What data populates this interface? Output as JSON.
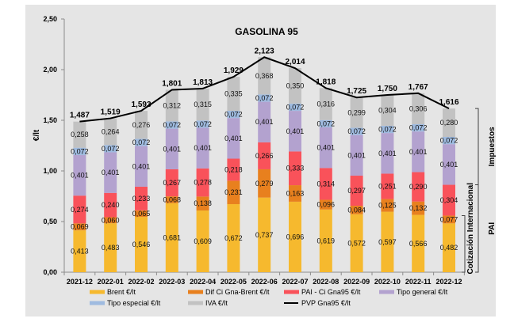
{
  "chart_data": {
    "type": "bar",
    "stacked": true,
    "title": "GASOLINA 95",
    "xlabel": "",
    "ylabel": "€/lt",
    "ylim": [
      0,
      2.5
    ],
    "yticks": [
      "0,00",
      "0,50",
      "1,00",
      "1,50",
      "2,00",
      "2,50"
    ],
    "ytick_values": [
      0,
      0.5,
      1.0,
      1.5,
      2.0,
      2.5
    ],
    "grid": false,
    "legend_position": "bottom",
    "categories": [
      "2021-12",
      "2022-01",
      "2022-02",
      "2022-03",
      "2022-04",
      "2022-05",
      "2022-06",
      "2022-07",
      "2022-08",
      "2022-09",
      "2022-10",
      "2022-11",
      "2022-12"
    ],
    "series": [
      {
        "name": "Brent €/lt",
        "color": "#f6b92e",
        "values": [
          0.413,
          0.483,
          0.546,
          0.681,
          0.609,
          0.672,
          0.737,
          0.696,
          0.619,
          0.572,
          0.597,
          0.566,
          0.482
        ],
        "labels": [
          "0,413",
          "0,483",
          "0,546",
          "0,681",
          "0,609",
          "0,672",
          "0,737",
          "0,696",
          "0,619",
          "0,572",
          "0,597",
          "0,566",
          "0,482"
        ]
      },
      {
        "name": "Dif Ci Gna-Brent €/lt",
        "color": "#e8801e",
        "values": [
          0.069,
          0.06,
          0.065,
          0.068,
          0.138,
          0.231,
          0.279,
          0.163,
          0.096,
          0.084,
          0.125,
          0.132,
          0.077
        ],
        "labels": [
          "0,069",
          "0,060",
          "0,065",
          "0,068",
          "0,138",
          "0,231",
          "0,279",
          "0,163",
          "0,096",
          "0,084",
          "0,125",
          "0,132",
          "0,077"
        ]
      },
      {
        "name": "PAI - Ci Gna95 €/lt",
        "color": "#f9525a",
        "values": [
          0.274,
          0.24,
          0.233,
          0.267,
          0.278,
          0.218,
          0.266,
          0.333,
          0.314,
          0.297,
          0.251,
          0.29,
          0.304
        ],
        "labels": [
          "0,274",
          "0,240",
          "0,233",
          "0,267",
          "0,278",
          "0,218",
          "0,266",
          "0,333",
          "0,314",
          "0,297",
          "0,251",
          "0,290",
          "0,304"
        ]
      },
      {
        "name": "Tipo general €/lt",
        "color": "#b3a2cf",
        "values": [
          0.401,
          0.401,
          0.401,
          0.401,
          0.401,
          0.401,
          0.401,
          0.401,
          0.401,
          0.401,
          0.401,
          0.401,
          0.401
        ],
        "labels": [
          "0,401",
          "0,401",
          "0,401",
          "0,401",
          "0,401",
          "0,401",
          "0,401",
          "0,401",
          "0,401",
          "0,401",
          "0,401",
          "0,401",
          "0,401"
        ]
      },
      {
        "name": "Tipo especial €/lt",
        "color": "#9fbbe0",
        "values": [
          0.072,
          0.072,
          0.072,
          0.072,
          0.072,
          0.072,
          0.072,
          0.072,
          0.072,
          0.072,
          0.072,
          0.072,
          0.072
        ],
        "labels": [
          "0,072",
          "0,072",
          "0,072",
          "0,072",
          "0,072",
          "0,072",
          "0,072",
          "0,072",
          "0,072",
          "0,072",
          "0,072",
          "0,072",
          "0,072"
        ]
      },
      {
        "name": "IVA €/lt",
        "color": "#c2c2c2",
        "values": [
          0.258,
          0.264,
          0.276,
          0.312,
          0.315,
          0.335,
          0.368,
          0.35,
          0.316,
          0.299,
          0.304,
          0.306,
          0.28
        ],
        "labels": [
          "0,258",
          "0,264",
          "0,276",
          "0,312",
          "0,315",
          "0,335",
          "0,368",
          "0,350",
          "0,316",
          "0,299",
          "0,304",
          "0,306",
          "0,280"
        ]
      }
    ],
    "line_series": {
      "name": "PVP Gna95 €/lt",
      "color": "#000000",
      "values": [
        1.487,
        1.519,
        1.593,
        1.801,
        1.813,
        1.929,
        2.123,
        2.014,
        1.818,
        1.725,
        1.75,
        1.767,
        1.616
      ],
      "labels": [
        "1,487",
        "1,519",
        "1,593",
        "1,801",
        "1,813",
        "1,929",
        "2,123",
        "2,014",
        "1,818",
        "1,725",
        "1,750",
        "1,767",
        "1,616"
      ]
    },
    "legend": [
      {
        "name": "Brent €/lt",
        "type": "bar",
        "color": "#f6b92e"
      },
      {
        "name": "Dif Ci Gna-Brent €/lt",
        "type": "bar",
        "color": "#e8801e"
      },
      {
        "name": "PAI - Ci Gna95 €/lt",
        "type": "bar",
        "color": "#f9525a"
      },
      {
        "name": "Tipo general €/lt",
        "type": "bar",
        "color": "#b3a2cf"
      },
      {
        "name": "Tipo especial €/lt",
        "type": "bar",
        "color": "#9fbbe0"
      },
      {
        "name": "IVA €/lt",
        "type": "bar",
        "color": "#c2c2c2"
      },
      {
        "name": "PVP Gna95 €/lt",
        "type": "line",
        "color": "#000000"
      }
    ],
    "annotations": [
      {
        "text": "Impuestos",
        "spans": "Tipo general + Tipo especial + IVA (last bar)"
      },
      {
        "text": "PAI",
        "spans": "Brent + Dif + PAI (last bar)"
      },
      {
        "text": "Cotización Internacional",
        "spans": "Brent + Dif (last bar)"
      }
    ]
  }
}
